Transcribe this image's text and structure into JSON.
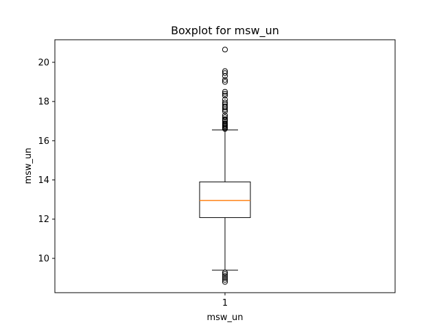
{
  "chart_data": {
    "type": "boxplot",
    "title": "Boxplot for msw_un",
    "xlabel": "msw_un",
    "ylabel": "msw_un",
    "categories": [
      "1"
    ],
    "ylim": [
      8.25,
      21.15
    ],
    "yticks": [
      10,
      12,
      14,
      16,
      18,
      20
    ],
    "grid": false,
    "box": {
      "whisker_low": 9.4,
      "q1": 12.08,
      "median": 12.95,
      "q3": 13.9,
      "whisker_high": 16.55
    },
    "outliers_high": [
      16.6,
      16.65,
      16.7,
      16.75,
      16.8,
      16.85,
      16.9,
      17.0,
      17.05,
      17.1,
      17.2,
      17.3,
      17.5,
      17.6,
      17.7,
      17.75,
      17.85,
      17.95,
      18.1,
      18.3,
      18.4,
      18.5,
      19.0,
      19.1,
      19.3,
      19.45,
      19.55,
      20.65
    ],
    "outliers_low": [
      8.8,
      8.9,
      9.0,
      9.1,
      9.2,
      9.28
    ],
    "colors": {
      "box": "#000000",
      "median": "#ff7f0e",
      "outlier": "#000000"
    }
  }
}
